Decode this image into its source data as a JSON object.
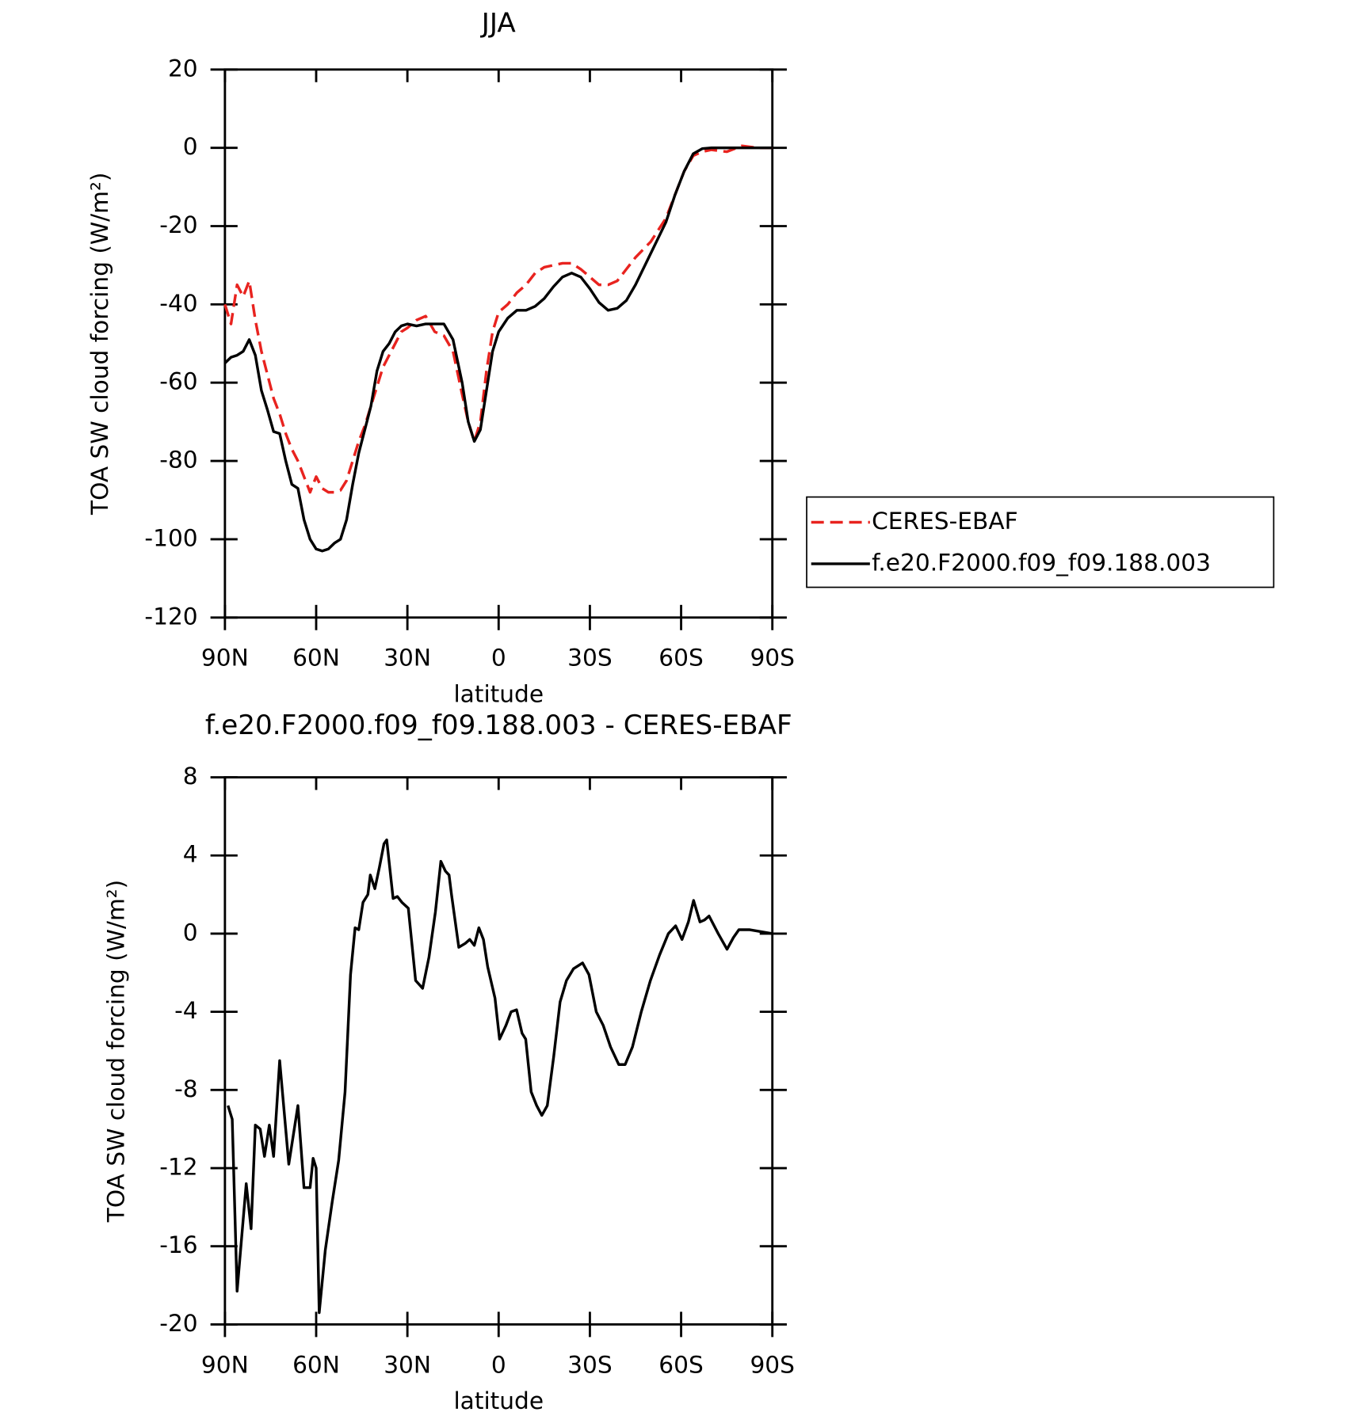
{
  "chart_data": [
    {
      "type": "line",
      "title": "JJA",
      "xlabel": "latitude",
      "ylabel": "TOA SW cloud forcing (W/m²)",
      "x": [
        90,
        88,
        86,
        84,
        82,
        80,
        78,
        76,
        74,
        72,
        70,
        68,
        66,
        64,
        62,
        60,
        58,
        56,
        54,
        52,
        50,
        48,
        46,
        44,
        42,
        40,
        38,
        36,
        34,
        32,
        30,
        27,
        24,
        21,
        18,
        15,
        12,
        10,
        8,
        6,
        4,
        2,
        0,
        -3,
        -6,
        -9,
        -12,
        -15,
        -18,
        -21,
        -24,
        -27,
        -30,
        -33,
        -36,
        -39,
        -42,
        -45,
        -50,
        -55,
        -58,
        -61,
        -64,
        -67,
        -70,
        -75,
        -80,
        -85,
        -90
      ],
      "series": [
        {
          "name": "CERES-EBAF",
          "color": "#e8231f",
          "dash": "dashed",
          "values": [
            -40,
            -45,
            -35,
            -38,
            -34,
            -44,
            -52,
            -58,
            -64,
            -68,
            -73,
            -77,
            -80,
            -84,
            -88,
            -84,
            -87,
            -88,
            -88,
            -87.5,
            -85,
            -80,
            -75,
            -71,
            -66,
            -61,
            -56,
            -53,
            -50,
            -47,
            -46,
            -44,
            -43,
            -47,
            -48,
            -52,
            -63,
            -70,
            -75,
            -70,
            -57,
            -47,
            -42,
            -40,
            -37,
            -35,
            -32,
            -30.5,
            -30,
            -29.5,
            -29.5,
            -31,
            -33,
            -35,
            -35,
            -34,
            -31,
            -28,
            -24,
            -18,
            -12,
            -6,
            -2,
            -1,
            -0.5,
            -1,
            0.5,
            0,
            0
          ]
        },
        {
          "name": "f.e20.F2000.f09_f09.188.003",
          "color": "#000000",
          "dash": "solid",
          "values": [
            -55,
            -53.5,
            -53,
            -52,
            -49,
            -53,
            -62,
            -67,
            -72.5,
            -73,
            -80,
            -86,
            -87,
            -95,
            -100,
            -102.5,
            -103,
            -102.5,
            -101,
            -100,
            -95,
            -86,
            -78,
            -72,
            -66,
            -57,
            -52,
            -50,
            -47,
            -45.5,
            -45,
            -45.5,
            -45,
            -45,
            -45,
            -49,
            -60,
            -70,
            -75,
            -72,
            -62,
            -52,
            -47,
            -43.5,
            -41.5,
            -41.5,
            -40.5,
            -38.5,
            -35.5,
            -33,
            -32,
            -33,
            -36,
            -39.5,
            -41.5,
            -41,
            -39,
            -35,
            -27,
            -19,
            -12,
            -6,
            -1.5,
            -0.2,
            0,
            0,
            0,
            0,
            0
          ]
        }
      ],
      "xlim": [
        90,
        -90
      ],
      "xticks": [
        {
          "value": 90,
          "label": "90N"
        },
        {
          "value": 60,
          "label": "60N"
        },
        {
          "value": 30,
          "label": "30N"
        },
        0,
        {
          "value": -30,
          "label": "30S"
        },
        {
          "value": -60,
          "label": "60S"
        },
        {
          "value": -90,
          "label": "90S"
        }
      ],
      "ylim": [
        -120,
        20
      ],
      "yticks": [
        -120,
        -100,
        -80,
        -60,
        -40,
        -20,
        0,
        20
      ],
      "legend": "right"
    },
    {
      "type": "line",
      "title": "f.e20.F2000.f09_f09.188.003 - CERES-EBAF",
      "xlabel": "latitude",
      "ylabel": "TOA SW cloud forcing (W/m²)",
      "x": [
        89,
        87.6,
        86,
        83,
        81.4,
        80,
        78.4,
        77,
        75.4,
        74,
        72,
        69,
        66,
        64,
        62,
        61,
        60,
        59,
        57,
        54.7,
        52.6,
        50.5,
        48.7,
        47.2,
        46,
        44.6,
        43,
        42.2,
        40.7,
        39.2,
        37.7,
        36.8,
        34.7,
        33.3,
        31.8,
        29.7,
        27.3,
        25,
        22.9,
        20.8,
        19,
        17.5,
        16.3,
        15.5,
        13.1,
        11,
        9.5,
        8,
        6.5,
        5,
        3.6,
        1.2,
        -0.3,
        -2.4,
        -4.1,
        -5.9,
        -7.7,
        -8.9,
        -10.7,
        -12.5,
        -14.2,
        -16,
        -18.1,
        -20.2,
        -22.3,
        -24.6,
        -27.6,
        -29.7,
        -32.1,
        -34.4,
        -36.8,
        -39.5,
        -41.6,
        -44,
        -46.9,
        -49.9,
        -52.9,
        -55.8,
        -58.2,
        -60.3,
        -62.4,
        -64.1,
        -66.2,
        -67.7,
        -69.2,
        -72.2,
        -75.1,
        -77.2,
        -79,
        -82.6,
        -90
      ],
      "series": [
        {
          "color": "#000000",
          "dash": "solid",
          "values": [
            -8.8,
            -9.5,
            -18.3,
            -12.8,
            -15.1,
            -9.8,
            -10,
            -11.4,
            -9.8,
            -11.4,
            -6.5,
            -11.8,
            -8.8,
            -13,
            -13,
            -11.5,
            -12,
            -19.4,
            -16.2,
            -13.7,
            -11.6,
            -8.1,
            -2.1,
            0.3,
            0.2,
            1.6,
            2,
            3,
            2.3,
            3.4,
            4.6,
            4.8,
            1.8,
            1.9,
            1.6,
            1.3,
            -2.4,
            -2.8,
            -1.2,
            1.1,
            3.7,
            3.2,
            3,
            2,
            -0.7,
            -0.5,
            -0.3,
            -0.6,
            0.3,
            -0.3,
            -1.7,
            -3.3,
            -5.4,
            -4.7,
            -4,
            -3.9,
            -5.1,
            -5.4,
            -8.1,
            -8.8,
            -9.3,
            -8.8,
            -6.3,
            -3.5,
            -2.4,
            -1.8,
            -1.5,
            -2.1,
            -4,
            -4.7,
            -5.8,
            -6.7,
            -6.7,
            -5.8,
            -4,
            -2.4,
            -1.1,
            0,
            0.4,
            -0.3,
            0.6,
            1.7,
            0.6,
            0.7,
            0.9,
            0,
            -0.8,
            -0.2,
            0.2,
            0.2,
            0
          ]
        }
      ],
      "xlim": [
        90,
        -90
      ],
      "xticks": [
        {
          "value": 90,
          "label": "90N"
        },
        {
          "value": 60,
          "label": "60N"
        },
        {
          "value": 30,
          "label": "30N"
        },
        0,
        {
          "value": -30,
          "label": "30S"
        },
        {
          "value": -60,
          "label": "60S"
        },
        {
          "value": -90,
          "label": "90S"
        }
      ],
      "ylim": [
        -20,
        8
      ],
      "yticks": [
        -20,
        -16,
        -12,
        -8,
        -4,
        0,
        4,
        8
      ]
    }
  ]
}
